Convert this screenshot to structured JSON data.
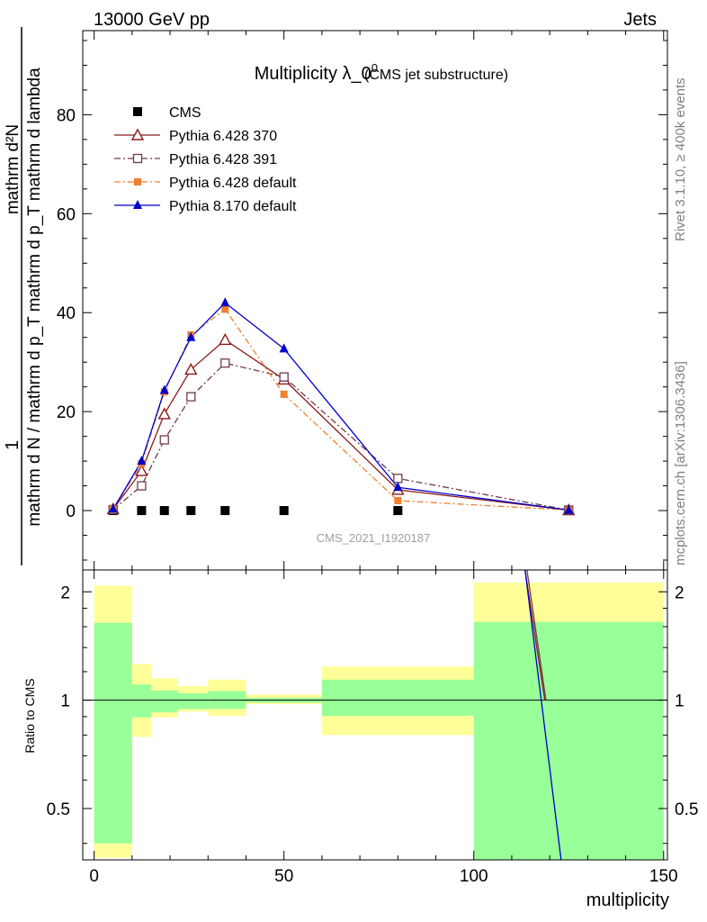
{
  "header": {
    "energy_label": "13000 GeV pp",
    "category_label": "Jets"
  },
  "side_labels": {
    "rivet": "Rivet 3.1.10, ≥ 400k events",
    "mcplots": "mcplots.cern.ch [arXiv:1306.3436]"
  },
  "colors": {
    "cms": "#000000",
    "py6_370": "#8b1a1a",
    "py6_391": "#6e3b4e",
    "py6_default": "#f08030",
    "py8_default": "#0000cc",
    "band_inner": "#99ff99",
    "band_outer": "#ffff99"
  },
  "chart_data": [
    {
      "type": "line",
      "title": "Multiplicity λ_0",
      "title_superscript": "0",
      "subtitle": "(CMS jet substructure)",
      "watermark": "CMS_2021_I1920187",
      "ylabel_numerator": "mathrm d²N",
      "ylabel_denominator": "mathrm d N / mathrm d p_T mathrm d p_T mathrm d lambda",
      "ylabel_one": "1",
      "xlim": [
        -3,
        151
      ],
      "ylim": [
        -12,
        97
      ],
      "yticks": [
        0,
        20,
        40,
        60,
        80
      ],
      "ytick_labels": [
        "0",
        "20",
        "40",
        "60",
        "80"
      ],
      "legend_position": "top-left",
      "series": [
        {
          "name": "CMS",
          "key": "cms",
          "style": "square-marker",
          "x": [
            5,
            12.5,
            18.5,
            25.5,
            34.5,
            50,
            80,
            125
          ],
          "y": [
            0,
            0,
            0,
            0,
            0,
            0,
            0,
            0
          ]
        },
        {
          "name": "Pythia 6.428 370",
          "key": "py6_370",
          "style": "solid-open-triangle",
          "x": [
            5,
            12.5,
            18.5,
            25.5,
            34.5,
            50,
            80,
            125
          ],
          "y": [
            0.3,
            8,
            19.5,
            28.5,
            34.5,
            26.5,
            4.2,
            0.1
          ]
        },
        {
          "name": "Pythia 6.428 391",
          "key": "py6_391",
          "style": "dashdot-open-square",
          "x": [
            5,
            12.5,
            18.5,
            25.5,
            34.5,
            50,
            80,
            125
          ],
          "y": [
            0.2,
            5,
            14.3,
            23,
            29.8,
            27,
            6.5,
            0.1
          ]
        },
        {
          "name": "Pythia 6.428 default",
          "key": "py6_default",
          "style": "dashdot-filled-square",
          "x": [
            5,
            12.5,
            18.5,
            25.5,
            34.5,
            50,
            80,
            125
          ],
          "y": [
            0.3,
            9.5,
            24,
            35.5,
            40.7,
            23.5,
            2,
            0.1
          ]
        },
        {
          "name": "Pythia 8.170 default",
          "key": "py8_default",
          "style": "solid-filled-triangle",
          "x": [
            5,
            12.5,
            18.5,
            25.5,
            34.5,
            50,
            80,
            125
          ],
          "y": [
            0.3,
            10,
            24.3,
            35,
            42,
            32.7,
            4.7,
            0.1
          ]
        }
      ]
    },
    {
      "type": "line",
      "ylabel": "Ratio to CMS",
      "xlabel": "multiplicity",
      "xlim": [
        -3,
        151
      ],
      "xticks": [
        0,
        50,
        100,
        150
      ],
      "xtick_labels": [
        "0",
        "50",
        "100",
        "150"
      ],
      "ylim": [
        0.36,
        2.3
      ],
      "yscale": "log",
      "yticks": [
        0.5,
        1,
        2
      ],
      "ytick_labels": [
        "0.5",
        "1",
        "2"
      ],
      "reference_line": 1,
      "bands": [
        {
          "x": [
            0,
            10
          ],
          "inner": [
            0.4,
            1.64
          ],
          "outer": [
            0.365,
            2.08
          ]
        },
        {
          "x": [
            10,
            15
          ],
          "inner": [
            0.895,
            1.105
          ],
          "outer": [
            0.79,
            1.26
          ]
        },
        {
          "x": [
            15,
            22
          ],
          "inner": [
            0.925,
            1.065
          ],
          "outer": [
            0.895,
            1.15
          ]
        },
        {
          "x": [
            22,
            30
          ],
          "inner": [
            0.945,
            1.045
          ],
          "outer": [
            0.93,
            1.095
          ]
        },
        {
          "x": [
            30,
            40
          ],
          "inner": [
            0.945,
            1.06
          ],
          "outer": [
            0.905,
            1.14
          ]
        },
        {
          "x": [
            40,
            60
          ],
          "inner": [
            0.985,
            1.015
          ],
          "outer": [
            0.975,
            1.035
          ]
        },
        {
          "x": [
            60,
            100
          ],
          "inner": [
            0.905,
            1.14
          ],
          "outer": [
            0.8,
            1.24
          ]
        },
        {
          "x": [
            100,
            150
          ],
          "inner": [
            0.36,
            1.65
          ],
          "outer": [
            0.36,
            2.12
          ]
        }
      ],
      "series_lines": [
        {
          "key": "py6_370",
          "x": [
            113.5,
            118.7
          ],
          "y": [
            2.3,
            1.0
          ]
        },
        {
          "key": "py6_391",
          "x": [
            114,
            119
          ],
          "y": [
            2.3,
            1.0
          ]
        },
        {
          "key": "py8_default",
          "x": [
            113.5,
            123
          ],
          "y": [
            2.3,
            0.36
          ]
        }
      ]
    }
  ]
}
